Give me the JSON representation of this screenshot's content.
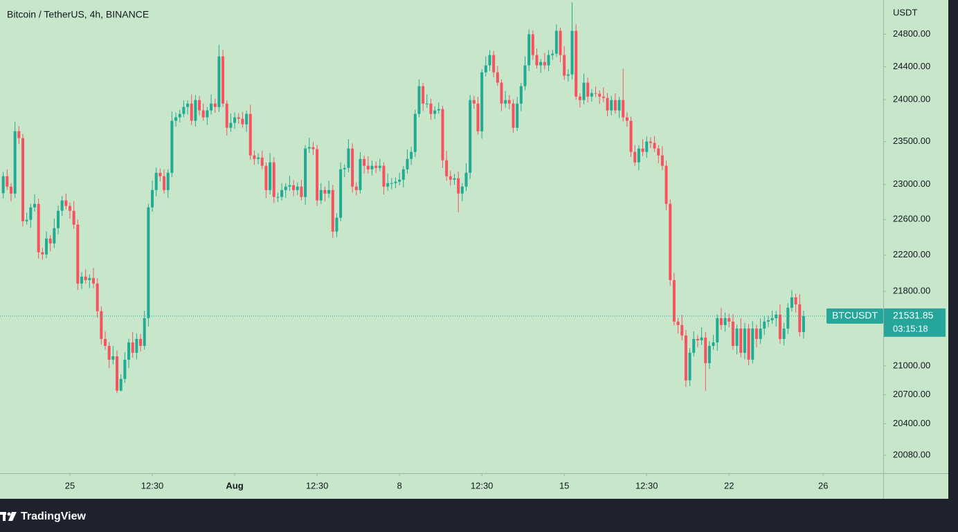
{
  "chart_data": {
    "type": "candlestick",
    "title": "Bitcoin / TetherUS, 4h, BINANCE",
    "y_unit": "USDT",
    "log_scale": true,
    "grid": false,
    "up_color": "#22ab94",
    "down_color": "#f7525f",
    "ylim": [
      19900,
      25230
    ],
    "yticks": [
      {
        "value": 24800,
        "label": "24800.00"
      },
      {
        "value": 24400,
        "label": "24400.00"
      },
      {
        "value": 24000,
        "label": "24000.00"
      },
      {
        "value": 23500,
        "label": "23500.00"
      },
      {
        "value": 23000,
        "label": "23000.00"
      },
      {
        "value": 22600,
        "label": "22600.00"
      },
      {
        "value": 22200,
        "label": "22200.00"
      },
      {
        "value": 21800,
        "label": "21800.00"
      },
      {
        "value": 21000,
        "label": "21000.00"
      },
      {
        "value": 20700,
        "label": "20700.00"
      },
      {
        "value": 20400,
        "label": "20400.00"
      },
      {
        "value": 20080,
        "label": "20080.00"
      }
    ],
    "xlim": [
      -0.82,
      224.3
    ],
    "xticks": [
      {
        "value": 17,
        "label": "25"
      },
      {
        "value": 38,
        "label": "12:30"
      },
      {
        "value": 59,
        "label": "Aug"
      },
      {
        "value": 80,
        "label": "12:30"
      },
      {
        "value": 101,
        "label": "8"
      },
      {
        "value": 122,
        "label": "12:30"
      },
      {
        "value": 143,
        "label": "15"
      },
      {
        "value": 164,
        "label": "12:30"
      },
      {
        "value": 185,
        "label": "22"
      },
      {
        "value": 209,
        "label": "26"
      }
    ],
    "open": [
      22900,
      23096,
      22976,
      22896,
      23623,
      23541,
      22581,
      22597,
      22738,
      22778,
      22231,
      22208,
      22385,
      22331,
      22502,
      22699,
      22817,
      22754,
      22699,
      22542,
      21886,
      21962,
      21924,
      21947,
      21886,
      21584,
      21286,
      21212,
      21066,
      21102,
      20741,
      20863,
      21066,
      21249,
      21139,
      21286,
      21212,
      21509,
      22738,
      22936,
      23136,
      23096,
      22936,
      23136,
      23747,
      23788,
      23829,
      23912,
      23953,
      23747,
      23995,
      23871,
      23788,
      23871,
      23953,
      23912,
      24526,
      23953,
      23664,
      23722,
      23788,
      23771,
      23705,
      23829,
      23338,
      23297,
      23313,
      23217,
      22936,
      23257,
      22857,
      22857,
      22936,
      22976,
      22992,
      22936,
      22976,
      22857,
      23419,
      23435,
      23411,
      22817,
      22936,
      22896,
      22936,
      22463,
      22620,
      23176,
      23192,
      23419,
      22976,
      22936,
      23297,
      23217,
      23176,
      23217,
      23192,
      23217,
      22976,
      23016,
      23016,
      23032,
      23056,
      23176,
      23297,
      23379,
      23829,
      24163,
      23953,
      23953,
      23829,
      23871,
      23887,
      23281,
      23096,
      23056,
      23072,
      22896,
      22976,
      23136,
      23995,
      23953,
      23623,
      24331,
      24416,
      24543,
      24331,
      24205,
      23953,
      23995,
      23953,
      23664,
      23953,
      24163,
      24416,
      24800,
      24543,
      24416,
      24458,
      24416,
      24543,
      24560,
      24843,
      24543,
      24289,
      24306,
      24843,
      24037,
      23995,
      24205,
      24037,
      24079,
      24071,
      24037,
      24020,
      23871,
      23995,
      23871,
      23995,
      23788,
      23747,
      23379,
      23257,
      23419,
      23379,
      23501,
      23485,
      23419,
      23338,
      23217,
      22778,
      21924,
      21472,
      21435,
      21323,
      20849,
      21139,
      21286,
      21271,
      21301,
      21029,
      21212,
      21249,
      21509,
      21435,
      21509,
      21472,
      21212,
      21397,
      21139,
      21397,
      21066,
      21397,
      21286,
      21397,
      21472,
      21487,
      21509,
      21547,
      21286,
      21397,
      21621,
      21734,
      21659,
      21360
    ],
    "high": [
      23146,
      23176,
      23016,
      23733,
      23683,
      23591,
      22677,
      22778,
      22888,
      22838,
      22281,
      22465,
      22425,
      22612,
      22759,
      22867,
      22897,
      22794,
      22809,
      22602,
      22012,
      22042,
      21987,
      22057,
      21946,
      21634,
      21366,
      21252,
      21212,
      21162,
      20913,
      21146,
      21289,
      21359,
      21346,
      21336,
      21589,
      22778,
      23046,
      23196,
      23186,
      23176,
      23176,
      23857,
      23848,
      23879,
      23992,
      23993,
      24063,
      24055,
      24045,
      23951,
      23911,
      24063,
      24013,
      24671,
      24606,
      23993,
      23832,
      23848,
      23838,
      23851,
      23869,
      23939,
      23398,
      23363,
      23393,
      23257,
      23367,
      23317,
      22907,
      23016,
      23016,
      23102,
      23052,
      23026,
      23056,
      23459,
      23545,
      23495,
      23461,
      23016,
      22976,
      23046,
      22996,
      22670,
      23256,
      23232,
      23529,
      23479,
      23026,
      23377,
      23337,
      23327,
      23277,
      23267,
      23297,
      23257,
      23126,
      23076,
      23082,
      23136,
      23216,
      23407,
      23439,
      23879,
      24243,
      24203,
      24063,
      24013,
      23921,
      23967,
      23927,
      23391,
      23156,
      23122,
      23152,
      23016,
      23246,
      24055,
      24045,
      24033,
      24371,
      24526,
      24603,
      24593,
      24411,
      24245,
      24105,
      24055,
      24003,
      24033,
      24203,
      24526,
      24860,
      24850,
      24623,
      24498,
      24568,
      24603,
      24610,
      24923,
      24883,
      24653,
      24366,
      25200,
      24923,
      24077,
      24315,
      24265,
      24129,
      24159,
      24111,
      24147,
      24080,
      24045,
      24075,
      24035,
      24375,
      23848,
      23797,
      23459,
      23459,
      23529,
      23561,
      23551,
      23565,
      23459,
      23448,
      23277,
      22828,
      22004,
      21512,
      21545,
      21383,
      21189,
      21366,
      21326,
      21411,
      21361,
      21262,
      21329,
      21549,
      21619,
      21569,
      21559,
      21552,
      21437,
      21507,
      21457,
      21447,
      21477,
      21437,
      21507,
      21532,
      21537,
      21589,
      21587,
      21657,
      21457,
      21671,
      21814,
      21774,
      21769,
      21590
    ],
    "low": [
      22840,
      22936,
      22806,
      22846,
      23471,
      22521,
      22541,
      22507,
      22688,
      22161,
      22148,
      22168,
      22241,
      22281,
      22432,
      22639,
      22714,
      22609,
      22492,
      21816,
      21826,
      21884,
      21834,
      21836,
      21514,
      21226,
      21172,
      20976,
      21016,
      20715,
      20735,
      20823,
      20976,
      21089,
      21069,
      21152,
      21172,
      21419,
      22688,
      22866,
      23036,
      22896,
      22846,
      23086,
      23677,
      23728,
      23789,
      23822,
      23697,
      23677,
      23811,
      23748,
      23698,
      23821,
      23842,
      23852,
      23913,
      23574,
      23614,
      23652,
      23711,
      23665,
      23615,
      23288,
      23227,
      23237,
      23177,
      22846,
      22886,
      22787,
      22797,
      22817,
      22846,
      22926,
      22866,
      22876,
      22817,
      22767,
      23369,
      23341,
      22757,
      22777,
      22806,
      22846,
      22393,
      22403,
      22580,
      23086,
      23142,
      22906,
      22876,
      22896,
      23127,
      23126,
      23106,
      23132,
      23152,
      22886,
      22926,
      22946,
      22956,
      22992,
      22966,
      23126,
      23227,
      23319,
      23789,
      23863,
      23903,
      23759,
      23769,
      23831,
      23191,
      23046,
      22986,
      22996,
      22680,
      22806,
      22926,
      23066,
      23893,
      23583,
      23533,
      24281,
      24346,
      24271,
      24165,
      23863,
      23903,
      23883,
      23604,
      23624,
      23863,
      24113,
      24346,
      24483,
      24376,
      24326,
      24366,
      24346,
      24483,
      24520,
      24453,
      24239,
      24219,
      24246,
      23997,
      23905,
      23945,
      23967,
      23977,
      24031,
      23947,
      23970,
      23801,
      23811,
      23831,
      23781,
      23738,
      23677,
      23319,
      23217,
      23167,
      23329,
      23309,
      23425,
      23379,
      23248,
      23167,
      22708,
      21864,
      21432,
      21345,
      21273,
      20779,
      20789,
      21099,
      21196,
      21221,
      20740,
      20969,
      21172,
      21159,
      21385,
      21365,
      21412,
      21172,
      21122,
      21089,
      21069,
      21006,
      21026,
      21196,
      21236,
      21327,
      21412,
      21447,
      21419,
      21236,
      21216,
      21337,
      21581,
      21569,
      21310,
      21290
    ],
    "close": [
      23096,
      22976,
      22896,
      23623,
      23541,
      22581,
      22597,
      22738,
      22778,
      22231,
      22208,
      22385,
      22331,
      22502,
      22699,
      22817,
      22754,
      22699,
      22542,
      21886,
      21962,
      21924,
      21947,
      21886,
      21584,
      21286,
      21212,
      21066,
      21102,
      20741,
      20863,
      21066,
      21249,
      21139,
      21286,
      21212,
      21509,
      22738,
      22936,
      23136,
      23096,
      22936,
      23136,
      23747,
      23788,
      23829,
      23912,
      23953,
      23747,
      23995,
      23871,
      23788,
      23871,
      23953,
      23912,
      24526,
      23953,
      23664,
      23722,
      23788,
      23771,
      23705,
      23829,
      23338,
      23297,
      23313,
      23217,
      22936,
      23257,
      22857,
      22857,
      22936,
      22976,
      22992,
      22936,
      22976,
      22857,
      23419,
      23435,
      23411,
      22817,
      22936,
      22896,
      22936,
      22463,
      22620,
      23176,
      23192,
      23419,
      22976,
      22936,
      23297,
      23217,
      23176,
      23217,
      23192,
      23217,
      22976,
      23016,
      23016,
      23032,
      23056,
      23176,
      23297,
      23379,
      23829,
      24163,
      23953,
      23953,
      23829,
      23871,
      23887,
      23281,
      23096,
      23056,
      23072,
      22896,
      22976,
      23136,
      23995,
      23953,
      23623,
      24331,
      24416,
      24543,
      24331,
      24205,
      23953,
      23995,
      23953,
      23664,
      23953,
      24163,
      24416,
      24800,
      24543,
      24416,
      24458,
      24416,
      24543,
      24560,
      24843,
      24543,
      24289,
      24306,
      24843,
      24037,
      23995,
      24205,
      24037,
      24079,
      24071,
      24037,
      24020,
      23871,
      23995,
      23871,
      23995,
      23788,
      23747,
      23379,
      23257,
      23419,
      23379,
      23501,
      23485,
      23419,
      23338,
      23217,
      22778,
      21924,
      21472,
      21435,
      21323,
      20849,
      21139,
      21286,
      21271,
      21301,
      21029,
      21212,
      21249,
      21509,
      21435,
      21509,
      21472,
      21212,
      21397,
      21139,
      21397,
      21066,
      21397,
      21286,
      21397,
      21472,
      21487,
      21509,
      21547,
      21286,
      21397,
      21621,
      21734,
      21659,
      21360,
      21531.85
    ],
    "price_label": {
      "symbol": "BTCUSDT",
      "value": 21531.85,
      "countdown": "03:15:18"
    }
  },
  "footer": {
    "brand": "TradingView"
  }
}
